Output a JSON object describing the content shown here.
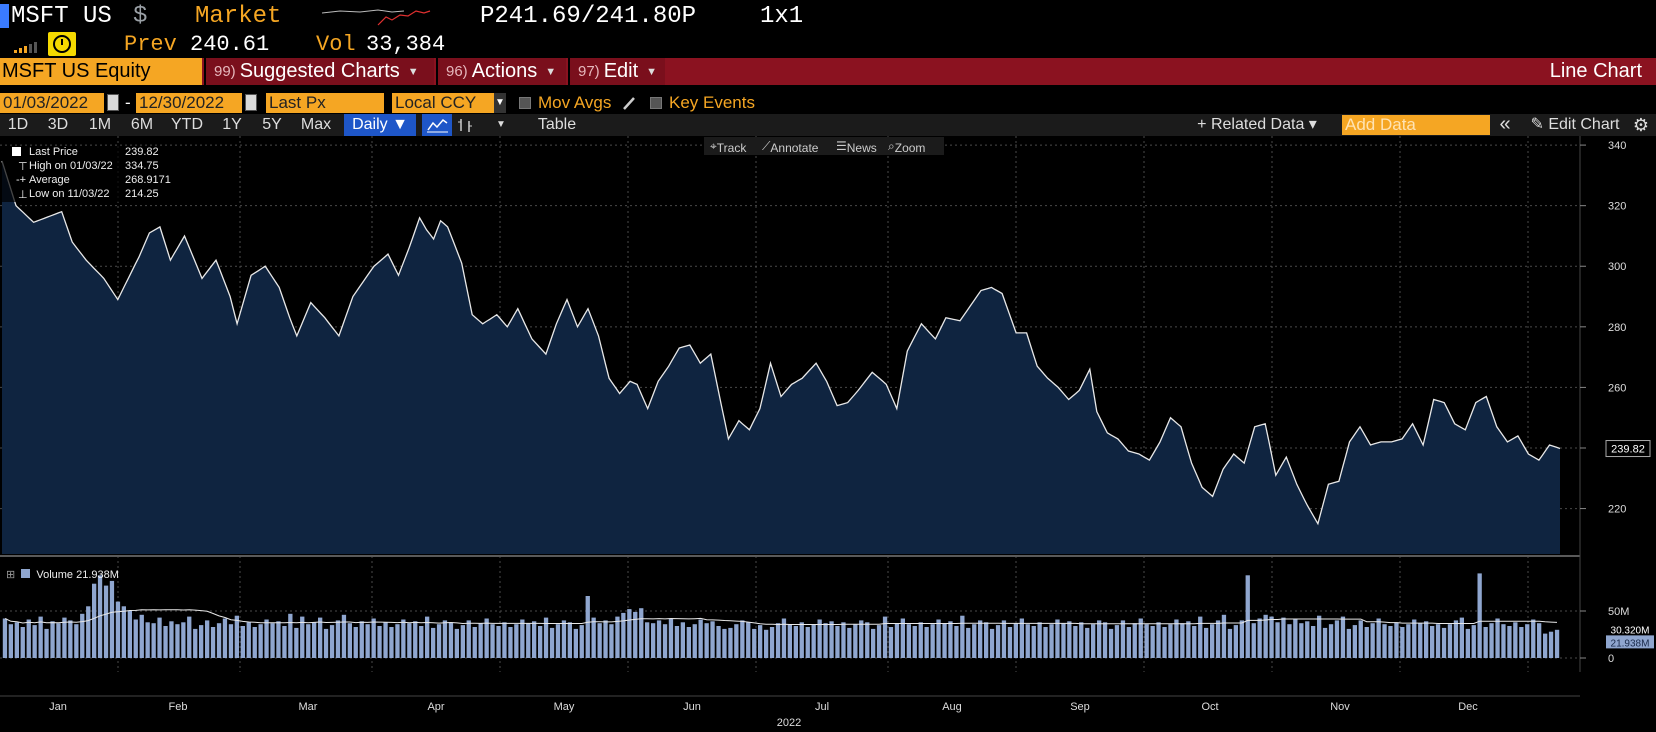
{
  "quote": {
    "ticker": "MSFT US",
    "currency_symbol": "$",
    "market_label": "Market",
    "bid_ask": "P241.69/241.80P",
    "size": "1x1",
    "prev_label": "Prev",
    "prev_value": "240.61",
    "vol_label": "Vol",
    "vol_value": "33,384"
  },
  "menubar": {
    "security": "MSFT US Equity",
    "suggested_num": "99)",
    "suggested_label": "Suggested Charts",
    "actions_num": "96)",
    "actions_label": "Actions",
    "edit_num": "97)",
    "edit_label": "Edit",
    "chart_type": "Line Chart"
  },
  "settings": {
    "start_date": "01/03/2022",
    "date_separator": "-",
    "end_date": "12/30/2022",
    "field": "Last Px",
    "currency": "Local CCY",
    "mov_avgs": "Mov Avgs",
    "key_events": "Key Events"
  },
  "toolbar": {
    "ranges": [
      "1D",
      "3D",
      "1M",
      "6M",
      "YTD",
      "1Y",
      "5Y",
      "Max"
    ],
    "frequency": "Daily ▼",
    "table": "Table",
    "related_data": "+ Related Data ▾",
    "add_data_placeholder": "Add Data",
    "collapse": "«",
    "edit_chart": "Edit Chart"
  },
  "mini_tools": {
    "track": "Track",
    "annotate": "Annotate",
    "news": "News",
    "zoom": "Zoom"
  },
  "legend": {
    "last_label": "Last Price",
    "last_value": "239.82",
    "high_label": "High on 01/03/22",
    "high_value": "334.75",
    "avg_label": "Average",
    "avg_value": "268.9171",
    "low_label": "Low on 11/03/22",
    "low_value": "214.25",
    "volume_label": "Volume",
    "volume_value": "21.938M"
  },
  "colors": {
    "accent_orange": "#f5a623",
    "menu_red": "#8b1220",
    "selected_blue": "#1e56c8",
    "area_fill": "#0f2440",
    "volume_bar": "#8fa6cf"
  },
  "chart_data": {
    "type": "line",
    "price": {
      "ylim": [
        205,
        343
      ],
      "ticks": [
        220,
        240,
        260,
        280,
        300,
        320,
        340
      ],
      "last_value": 239.82,
      "last_label": "239.82",
      "anchors": [
        [
          0,
          334.75
        ],
        [
          4,
          320
        ],
        [
          9,
          314.5
        ],
        [
          17,
          318
        ],
        [
          20,
          308
        ],
        [
          24,
          302
        ],
        [
          29,
          296
        ],
        [
          33,
          289
        ],
        [
          39,
          303
        ],
        [
          42,
          311
        ],
        [
          45,
          313
        ],
        [
          48,
          302
        ],
        [
          52,
          310
        ],
        [
          57,
          296
        ],
        [
          61,
          302
        ],
        [
          65,
          290
        ],
        [
          67,
          281
        ],
        [
          71,
          297
        ],
        [
          75,
          300
        ],
        [
          79,
          293
        ],
        [
          82,
          283
        ],
        [
          84,
          277
        ],
        [
          88,
          288
        ],
        [
          92,
          283
        ],
        [
          96,
          277
        ],
        [
          100,
          290
        ],
        [
          106,
          300
        ],
        [
          110,
          304
        ],
        [
          113,
          297
        ],
        [
          116,
          306
        ],
        [
          119,
          316
        ],
        [
          121,
          312
        ],
        [
          123,
          309
        ],
        [
          125,
          315
        ],
        [
          127,
          313
        ],
        [
          131,
          301
        ],
        [
          134,
          284
        ],
        [
          137,
          281
        ],
        [
          141,
          284
        ],
        [
          144,
          280
        ],
        [
          147,
          286
        ],
        [
          151,
          276
        ],
        [
          155,
          271
        ],
        [
          158,
          281
        ],
        [
          161,
          289
        ],
        [
          164,
          280
        ],
        [
          167,
          286
        ],
        [
          170,
          277
        ],
        [
          173,
          263
        ],
        [
          176,
          258
        ],
        [
          179,
          262
        ],
        [
          181,
          261
        ],
        [
          184,
          253
        ],
        [
          187,
          262
        ],
        [
          190,
          267
        ],
        [
          193,
          273
        ],
        [
          196,
          274
        ],
        [
          199,
          268
        ],
        [
          202,
          271
        ],
        [
          207,
          243
        ],
        [
          210,
          249
        ],
        [
          213,
          246
        ],
        [
          216,
          253
        ],
        [
          219,
          268
        ],
        [
          222,
          257
        ],
        [
          225,
          261
        ],
        [
          228,
          263
        ],
        [
          232,
          268
        ],
        [
          235,
          262
        ],
        [
          238,
          254
        ],
        [
          241,
          255
        ],
        [
          244,
          259
        ],
        [
          248,
          265
        ],
        [
          252,
          261
        ],
        [
          255,
          253
        ],
        [
          258,
          272
        ],
        [
          262,
          281
        ],
        [
          266,
          276
        ],
        [
          269,
          283
        ],
        [
          273,
          282
        ],
        [
          276,
          287
        ],
        [
          279,
          292
        ],
        [
          282,
          293
        ],
        [
          285,
          291
        ],
        [
          289,
          278
        ],
        [
          292,
          278
        ],
        [
          295,
          267
        ],
        [
          298,
          263
        ],
        [
          301,
          260
        ],
        [
          304,
          256
        ],
        [
          307,
          259
        ],
        [
          310,
          266
        ],
        [
          312,
          252
        ],
        [
          315,
          245
        ],
        [
          318,
          243
        ],
        [
          321,
          239
        ],
        [
          324,
          238
        ],
        [
          327,
          236
        ],
        [
          330,
          242
        ],
        [
          333,
          250
        ],
        [
          336,
          247
        ],
        [
          339,
          235
        ],
        [
          342,
          227
        ],
        [
          345,
          224
        ],
        [
          348,
          233
        ],
        [
          351,
          238
        ],
        [
          354,
          235
        ],
        [
          357,
          247
        ],
        [
          360,
          248
        ],
        [
          363,
          231
        ],
        [
          366,
          237
        ],
        [
          369,
          228
        ],
        [
          372,
          221
        ],
        [
          375,
          215
        ],
        [
          378,
          228
        ],
        [
          381,
          229
        ],
        [
          384,
          242
        ],
        [
          387,
          247
        ],
        [
          390,
          241
        ],
        [
          393,
          242
        ],
        [
          396,
          242
        ],
        [
          399,
          243
        ],
        [
          402,
          248
        ],
        [
          405,
          241
        ],
        [
          408,
          256
        ],
        [
          411,
          255
        ],
        [
          414,
          248
        ],
        [
          417,
          246
        ],
        [
          420,
          255
        ],
        [
          423,
          257
        ],
        [
          426,
          247
        ],
        [
          429,
          242
        ],
        [
          432,
          244
        ],
        [
          435,
          238
        ],
        [
          438,
          236
        ],
        [
          441,
          241
        ],
        [
          444,
          239.82
        ]
      ],
      "anchor_count_total": 444
    },
    "volume": {
      "ylim": [
        0,
        100
      ],
      "ticks": [
        0,
        50
      ],
      "tick_labels": [
        "0",
        "50M"
      ],
      "last_value": 21.938,
      "ma_value": 30.32,
      "last_label": "21.938M",
      "ma_label": "30.320M",
      "bars": [
        42,
        36,
        38,
        33,
        41,
        35,
        44,
        31,
        39,
        37,
        43,
        40,
        36,
        47,
        55,
        79,
        88,
        77,
        82,
        60,
        55,
        50,
        41,
        46,
        38,
        37,
        43,
        34,
        39,
        36,
        38,
        44,
        31,
        35,
        40,
        33,
        37,
        42,
        36,
        45,
        34,
        38,
        33,
        36,
        41,
        37,
        39,
        34,
        47,
        32,
        44,
        36,
        38,
        43,
        31,
        35,
        40,
        46,
        37,
        33,
        39,
        36,
        42,
        34,
        38,
        33,
        36,
        41,
        37,
        39,
        34,
        44,
        32,
        36,
        40,
        38,
        31,
        35,
        40,
        33,
        37,
        42,
        36,
        34,
        38,
        33,
        36,
        41,
        37,
        39,
        34,
        43,
        32,
        36,
        40,
        38,
        31,
        35,
        66,
        43,
        37,
        40,
        36,
        44,
        48,
        52,
        49,
        53,
        38,
        37,
        40,
        36,
        42,
        34,
        38,
        33,
        36,
        41,
        37,
        39,
        34,
        31,
        32,
        36,
        40,
        38,
        31,
        35,
        30,
        33,
        37,
        42,
        36,
        34,
        38,
        33,
        36,
        41,
        37,
        39,
        34,
        38,
        32,
        36,
        40,
        38,
        31,
        35,
        44,
        33,
        37,
        42,
        36,
        34,
        38,
        33,
        36,
        41,
        37,
        39,
        34,
        45,
        32,
        36,
        40,
        38,
        31,
        35,
        40,
        33,
        37,
        42,
        36,
        34,
        38,
        33,
        36,
        41,
        37,
        39,
        34,
        38,
        32,
        36,
        40,
        38,
        31,
        35,
        40,
        33,
        37,
        42,
        36,
        34,
        38,
        33,
        36,
        41,
        37,
        39,
        34,
        44,
        32,
        36,
        40,
        46,
        31,
        35,
        40,
        88,
        37,
        42,
        46,
        44,
        38,
        43,
        36,
        41,
        37,
        39,
        34,
        45,
        32,
        36,
        40,
        44,
        31,
        35,
        40,
        33,
        37,
        42,
        36,
        34,
        38,
        33,
        36,
        41,
        37,
        39,
        34,
        36,
        32,
        36,
        40,
        43,
        31,
        35,
        90,
        33,
        37,
        42,
        36,
        34,
        38,
        33,
        36,
        41,
        37,
        26,
        28,
        30
      ]
    },
    "x_axis": {
      "months": [
        "Jan",
        "Feb",
        "Mar",
        "Apr",
        "May",
        "Jun",
        "Jul",
        "Aug",
        "Sep",
        "Oct",
        "Nov",
        "Dec"
      ],
      "year_label": "2022"
    }
  }
}
